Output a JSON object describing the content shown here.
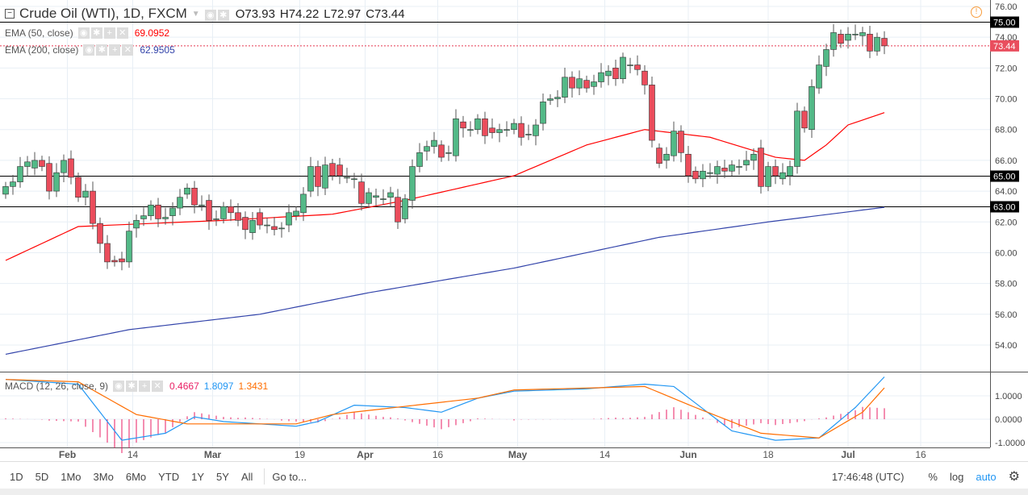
{
  "header": {
    "symbol": "Crude Oil (WTI), 1D, FXCM",
    "open": "O73.93",
    "high": "H74.22",
    "low": "L72.97",
    "close": "C73.44"
  },
  "indicators": [
    {
      "label": "EMA (50, close)",
      "value": "69.0952",
      "color": "#ff0000"
    },
    {
      "label": "EMA (200, close)",
      "value": "62.9505",
      "color": "#3344aa"
    }
  ],
  "macd_legend": {
    "label": "MACD (12, 26, close, 9)",
    "hist": "0.4667",
    "macd": "1.8097",
    "signal": "1.3431"
  },
  "toolbar": {
    "ranges": [
      "1D",
      "5D",
      "1Mo",
      "3Mo",
      "6Mo",
      "YTD",
      "1Y",
      "5Y",
      "All"
    ],
    "goto": "Go to...",
    "time": "17:46:48 (UTC)",
    "percent": "%",
    "log": "log",
    "auto": "auto"
  },
  "chart_data": {
    "type": "candlestick",
    "ylim": [
      52.5,
      76.4
    ],
    "y_ticks": [
      "76.00",
      "74.00",
      "72.00",
      "70.00",
      "68.00",
      "66.00",
      "64.00",
      "62.00",
      "60.00",
      "58.00",
      "56.00",
      "54.00"
    ],
    "h_lines": [
      "75.00",
      "65.00",
      "63.00"
    ],
    "last_price": "73.44",
    "x_labels": [
      "Feb",
      "14",
      "Mar",
      "19",
      "Apr",
      "16",
      "May",
      "14",
      "Jun",
      "18",
      "Jul",
      "16"
    ],
    "x_label_index": [
      8.5,
      17.5,
      28.5,
      40.5,
      49.5,
      59.5,
      70.5,
      82.5,
      94,
      105,
      116,
      126
    ],
    "oc": [
      [
        63.8,
        64.3
      ],
      [
        64.3,
        64.6
      ],
      [
        64.6,
        65.6
      ],
      [
        65.6,
        65.9
      ],
      [
        65.5,
        66
      ],
      [
        66,
        65.6
      ],
      [
        65.8,
        64
      ],
      [
        64,
        65.2
      ],
      [
        65.2,
        66
      ],
      [
        66.1,
        64.9
      ],
      [
        64.9,
        63.6
      ],
      [
        63.6,
        64
      ],
      [
        64,
        61.9
      ],
      [
        61.9,
        60.6
      ],
      [
        60.6,
        59.4
      ],
      [
        59.5,
        59.4
      ],
      [
        59.6,
        59.4
      ],
      [
        59.4,
        61.4
      ],
      [
        61.6,
        62.1
      ],
      [
        62.2,
        62.4
      ],
      [
        62.4,
        63.1
      ],
      [
        63.1,
        62.2
      ],
      [
        62.2,
        62.3
      ],
      [
        62.4,
        62.9
      ],
      [
        62.9,
        63.6
      ],
      [
        63.8,
        64.2
      ],
      [
        64.2,
        63.1
      ],
      [
        63.1,
        63.1
      ],
      [
        63.4,
        62.1
      ],
      [
        62.2,
        62.2
      ],
      [
        62.2,
        63
      ],
      [
        63,
        62.6
      ],
      [
        62.6,
        62.1
      ],
      [
        62.3,
        61.5
      ],
      [
        61.3,
        62.1
      ],
      [
        62.6,
        61.8
      ],
      [
        61.8,
        61.8
      ],
      [
        61.7,
        61.5
      ],
      [
        61.6,
        61.6
      ],
      [
        61.8,
        62.6
      ],
      [
        62.4,
        62.7
      ],
      [
        62.6,
        63.8
      ],
      [
        64,
        65.6
      ],
      [
        65.6,
        64.3
      ],
      [
        64.2,
        65.7
      ],
      [
        65.8,
        65
      ],
      [
        65.7,
        65
      ],
      [
        64.9,
        64.9
      ],
      [
        64.8,
        64.8
      ],
      [
        64.6,
        63.2
      ],
      [
        63.2,
        63.9
      ],
      [
        63.6,
        63.7
      ],
      [
        63.5,
        63.5
      ],
      [
        63.6,
        63.9
      ],
      [
        63.6,
        62
      ],
      [
        62.2,
        63.5
      ],
      [
        63.4,
        65.6
      ],
      [
        65.6,
        66.5
      ],
      [
        66.6,
        66.9
      ],
      [
        66.9,
        67.3
      ],
      [
        67,
        66.2
      ],
      [
        66.5,
        66.5
      ],
      [
        66.3,
        68.7
      ],
      [
        68.5,
        68.1
      ],
      [
        68,
        68
      ],
      [
        68,
        68.7
      ],
      [
        68.7,
        67.6
      ],
      [
        68.1,
        67.8
      ],
      [
        67.8,
        68
      ],
      [
        68,
        68
      ],
      [
        68,
        68.4
      ],
      [
        68.4,
        67.5
      ],
      [
        67.7,
        67.7
      ],
      [
        67.6,
        68.3
      ],
      [
        68.4,
        69.8
      ],
      [
        69.9,
        70
      ],
      [
        70,
        70.1
      ],
      [
        70.1,
        71.4
      ],
      [
        71.4,
        70.7
      ],
      [
        70.7,
        71.3
      ],
      [
        71.2,
        70.7
      ],
      [
        70.8,
        71.1
      ],
      [
        71.1,
        71.7
      ],
      [
        71.5,
        71.8
      ],
      [
        72,
        71.3
      ],
      [
        71.3,
        72.7
      ],
      [
        72.2,
        72.2
      ],
      [
        72.2,
        71.9
      ],
      [
        71.8,
        70.9
      ],
      [
        70.9,
        67.3
      ],
      [
        66.8,
        65.8
      ],
      [
        66,
        66.4
      ],
      [
        66.3,
        67.9
      ],
      [
        67.9,
        66.5
      ],
      [
        66.4,
        65
      ],
      [
        65.3,
        64.8
      ],
      [
        64.8,
        65.3
      ],
      [
        65.2,
        65.2
      ],
      [
        65.1,
        65.6
      ],
      [
        65.5,
        65.3
      ],
      [
        65.3,
        65.7
      ],
      [
        65.6,
        65.6
      ],
      [
        65.7,
        66
      ],
      [
        66,
        66.4
      ],
      [
        66.8,
        64.3
      ],
      [
        64.3,
        65.6
      ],
      [
        65.6,
        65
      ],
      [
        64.8,
        65.2
      ],
      [
        65,
        65.6
      ],
      [
        65.6,
        69.2
      ],
      [
        69.2,
        68.1
      ],
      [
        68,
        70.8
      ],
      [
        70.7,
        72.2
      ],
      [
        72.1,
        73.2
      ],
      [
        73.2,
        74.3
      ],
      [
        74.2,
        73.6
      ],
      [
        73.8,
        74.2
      ],
      [
        74.2,
        74.2
      ],
      [
        74.1,
        74.3
      ],
      [
        74.2,
        73.1
      ],
      [
        73.1,
        74
      ],
      [
        73.93,
        73.44
      ]
    ],
    "ema50": [
      [
        0,
        59.5
      ],
      [
        10,
        61.7
      ],
      [
        30,
        62.1
      ],
      [
        45,
        62.5
      ],
      [
        55,
        63.4
      ],
      [
        70,
        65
      ],
      [
        80,
        67
      ],
      [
        88,
        68
      ],
      [
        97,
        67.5
      ],
      [
        106,
        66.2
      ],
      [
        110,
        66
      ],
      [
        113,
        67
      ],
      [
        116,
        68.3
      ],
      [
        121,
        69.1
      ]
    ],
    "ema200": [
      [
        0,
        53.4
      ],
      [
        17,
        55
      ],
      [
        35,
        56
      ],
      [
        50,
        57.4
      ],
      [
        70,
        59
      ],
      [
        90,
        61
      ],
      [
        105,
        62
      ],
      [
        121,
        62.95
      ]
    ],
    "macd_ylim": [
      -1.1,
      1.9
    ],
    "macd_ticks": [
      "1.0000",
      "0.0000",
      "-1.0000"
    ],
    "macd": [
      [
        0,
        1.7
      ],
      [
        10,
        1.5
      ],
      [
        16,
        -0.9
      ],
      [
        22,
        -0.6
      ],
      [
        26,
        0.1
      ],
      [
        30,
        -0.1
      ],
      [
        40,
        -0.3
      ],
      [
        43,
        -0.1
      ],
      [
        48,
        0.6
      ],
      [
        55,
        0.5
      ],
      [
        60,
        0.3
      ],
      [
        65,
        0.9
      ],
      [
        70,
        1.2
      ],
      [
        80,
        1.3
      ],
      [
        88,
        1.5
      ],
      [
        92,
        1.4
      ],
      [
        100,
        -0.5
      ],
      [
        106,
        -0.9
      ],
      [
        112,
        -0.8
      ],
      [
        117,
        0.5
      ],
      [
        121,
        1.81
      ]
    ],
    "signal": [
      [
        0,
        1.7
      ],
      [
        10,
        1.6
      ],
      [
        18,
        0.2
      ],
      [
        25,
        -0.2
      ],
      [
        40,
        -0.2
      ],
      [
        45,
        0.2
      ],
      [
        55,
        0.55
      ],
      [
        65,
        0.9
      ],
      [
        70,
        1.25
      ],
      [
        88,
        1.4
      ],
      [
        95,
        0.5
      ],
      [
        104,
        -0.6
      ],
      [
        112,
        -0.8
      ],
      [
        118,
        0.3
      ],
      [
        121,
        1.34
      ]
    ]
  }
}
